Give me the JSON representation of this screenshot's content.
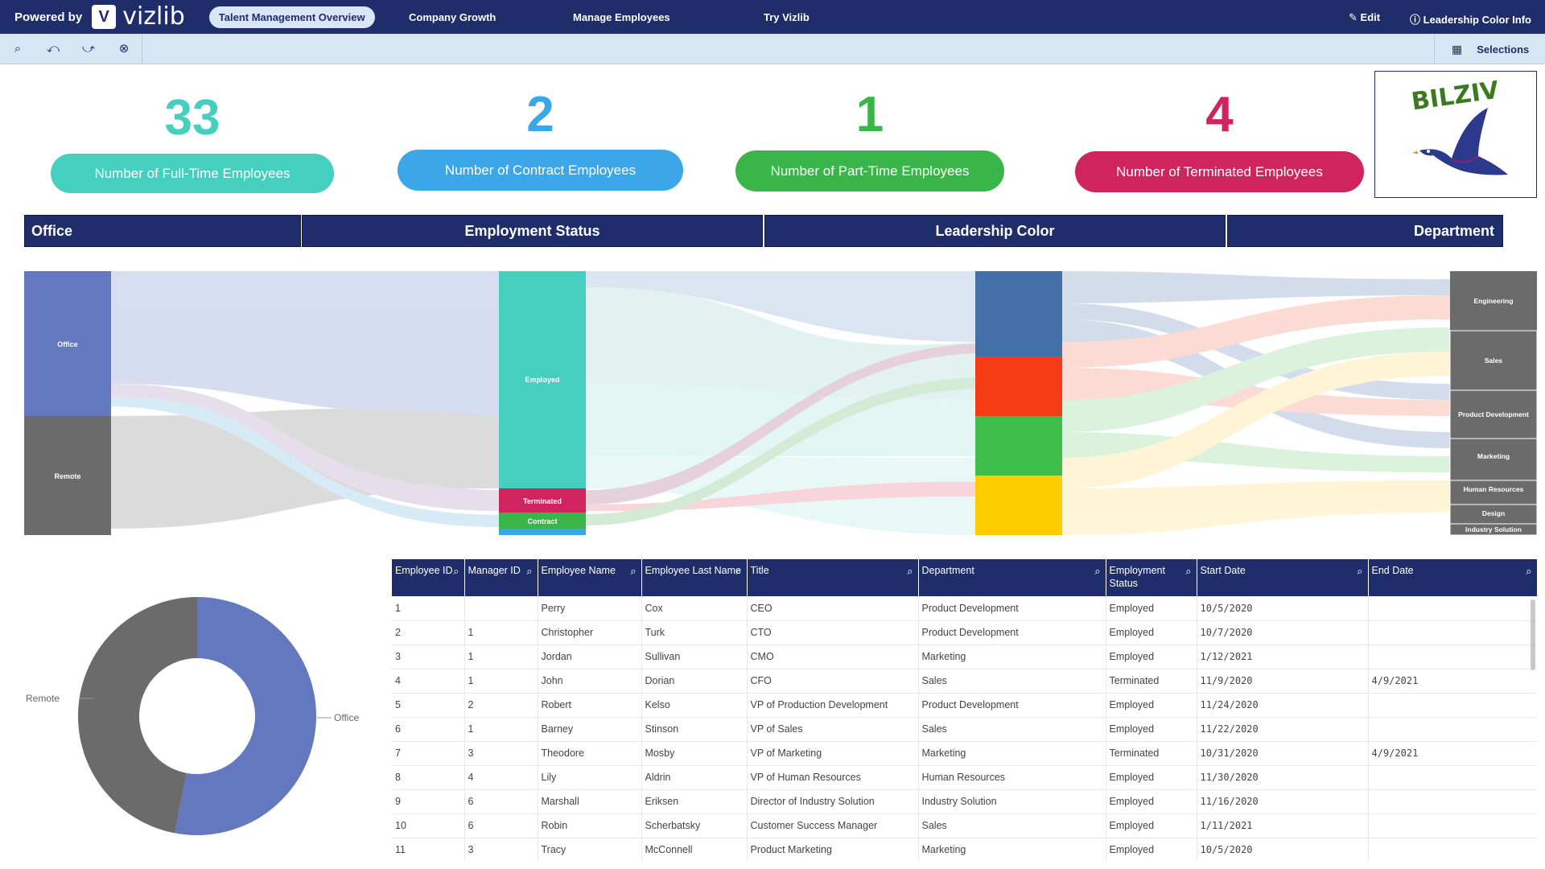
{
  "topbar": {
    "powered_by": "Powered by",
    "brand": "vizlib",
    "active_tab": "Talent Management Overview",
    "tabs": [
      "Company Growth",
      "Manage Employees",
      "Try Vizlib"
    ],
    "edit": "Edit",
    "info": "Leadership Color Info"
  },
  "toolbar": {
    "icons": [
      "smart-search-icon",
      "selections-back-icon",
      "selections-forward-icon",
      "clear-selections-icon"
    ],
    "selections": "Selections"
  },
  "kpis": [
    {
      "value": "33",
      "label": "Number of Full-Time Employees",
      "color": "#45cfbe"
    },
    {
      "value": "2",
      "label": "Number of Contract Employees",
      "color": "#3ba7e8"
    },
    {
      "value": "1",
      "label": "Number of Part-Time Employees",
      "color": "#3ab54a"
    },
    {
      "value": "4",
      "label": "Number of Terminated Employees",
      "color": "#d0245f"
    }
  ],
  "logo": {
    "text": "BILZIV"
  },
  "headers": [
    "Office",
    "Employment Status",
    "Leadership Color",
    "Department"
  ],
  "sankey": {
    "office_nodes": [
      "Office",
      "Remote"
    ],
    "status_nodes": [
      "Employed",
      "Terminated",
      "Contract"
    ],
    "departments": [
      "Engineering",
      "Sales",
      "Product Development",
      "Marketing",
      "Human Resources",
      "Design",
      "Industry Solution"
    ],
    "colors": {
      "blue": "#4470a8",
      "red": "#f63c17",
      "green": "#3ebe4a",
      "yellow": "#ffcc00",
      "office": "#6478c0",
      "remote": "#6b6b6b",
      "employed": "#45cfbe",
      "terminated": "#d0245f",
      "contract": "#3ab54a"
    }
  },
  "donut": {
    "labels": [
      "Remote",
      "Office"
    ],
    "values": [
      47,
      53
    ],
    "colors": [
      "#6b6b6b",
      "#6478c0"
    ]
  },
  "table": {
    "columns": [
      "Employee ID",
      "Manager ID",
      "Employee Name",
      "Employee Last Name",
      "Title",
      "Department",
      "Employment Status",
      "Start Date",
      "End Date"
    ],
    "rows": [
      [
        "1",
        "",
        "Perry",
        "Cox",
        "CEO",
        "Product Development",
        "Employed",
        "10/5/2020",
        ""
      ],
      [
        "2",
        "1",
        "Christopher",
        "Turk",
        "CTO",
        "Product Development",
        "Employed",
        "10/7/2020",
        ""
      ],
      [
        "3",
        "1",
        "Jordan",
        "Sullivan",
        "CMO",
        "Marketing",
        "Employed",
        "1/12/2021",
        ""
      ],
      [
        "4",
        "1",
        "John",
        "Dorian",
        "CFO",
        "Sales",
        "Terminated",
        "11/9/2020",
        "4/9/2021"
      ],
      [
        "5",
        "2",
        "Robert",
        "Kelso",
        "VP of Production Development",
        "Product Development",
        "Employed",
        "11/24/2020",
        ""
      ],
      [
        "6",
        "1",
        "Barney",
        "Stinson",
        "VP of Sales",
        "Sales",
        "Employed",
        "11/22/2020",
        ""
      ],
      [
        "7",
        "3",
        "Theodore",
        "Mosby",
        "VP of Marketing",
        "Marketing",
        "Terminated",
        "10/31/2020",
        "4/9/2021"
      ],
      [
        "8",
        "4",
        "Lily",
        "Aldrin",
        "VP of Human Resources",
        "Human Resources",
        "Employed",
        "11/30/2020",
        ""
      ],
      [
        "9",
        "6",
        "Marshall",
        "Eriksen",
        "Director of Industry Solution",
        "Industry Solution",
        "Employed",
        "11/16/2020",
        ""
      ],
      [
        "10",
        "6",
        "Robin",
        "Scherbatsky",
        "Customer Success Manager",
        "Sales",
        "Employed",
        "1/11/2021",
        ""
      ],
      [
        "11",
        "3",
        "Tracy",
        "McConnell",
        "Product Marketing",
        "Marketing",
        "Employed",
        "10/5/2020",
        ""
      ]
    ]
  }
}
